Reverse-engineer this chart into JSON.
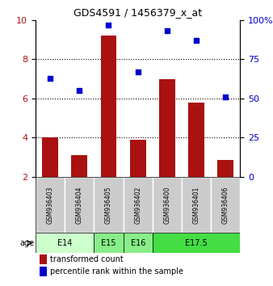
{
  "title": "GDS4591 / 1456379_x_at",
  "samples": [
    "GSM936403",
    "GSM936404",
    "GSM936405",
    "GSM936402",
    "GSM936400",
    "GSM936401",
    "GSM936406"
  ],
  "transformed_count": [
    4.0,
    3.1,
    9.2,
    3.9,
    7.0,
    5.8,
    2.85
  ],
  "percentile_rank": [
    63,
    55,
    97,
    67,
    93,
    87,
    51
  ],
  "bar_color": "#aa1111",
  "dot_color": "#0000cc",
  "bar_bottom": 2,
  "ylim_left": [
    2,
    10
  ],
  "ylim_right": [
    0,
    100
  ],
  "yticks_left": [
    2,
    4,
    6,
    8,
    10
  ],
  "yticks_right": [
    0,
    25,
    50,
    75,
    100
  ],
  "ytick_labels_right": [
    "0",
    "25",
    "50",
    "75",
    "100%"
  ],
  "age_groups": [
    {
      "label": "E14",
      "samples": [
        0,
        1
      ],
      "color": "#ccffcc"
    },
    {
      "label": "E15",
      "samples": [
        2
      ],
      "color": "#88ee88"
    },
    {
      "label": "E16",
      "samples": [
        3
      ],
      "color": "#88ee88"
    },
    {
      "label": "E17.5",
      "samples": [
        4,
        5,
        6
      ],
      "color": "#44dd44"
    }
  ],
  "legend_red_label": "transformed count",
  "legend_blue_label": "percentile rank within the sample",
  "bar_color_hex": "#aa1111",
  "dot_color_hex": "#0000cc",
  "sample_box_color": "#cccccc"
}
